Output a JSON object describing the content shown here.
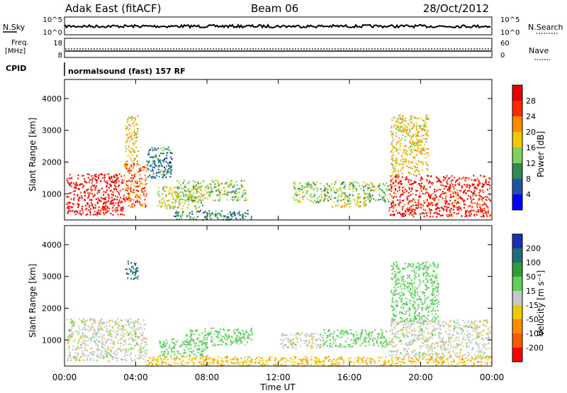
{
  "header": {
    "station": "Adak East (fitACF)",
    "beam": "Beam 06",
    "date": "28/Oct/2012"
  },
  "noise_panel": {
    "left_label": "N.Sky",
    "left_ticks": [
      "10^5",
      "10^0"
    ],
    "right_label": "N.Search",
    "right_ticks": [
      "10^5",
      "10^0"
    ],
    "right_line_style": "dotted"
  },
  "freq_panel": {
    "left_label_line1": "Freq.",
    "left_label_line2": "[MHz]",
    "left_ticks": [
      "18",
      "8"
    ],
    "right_label": "Nave",
    "right_ticks": [
      "60",
      "0"
    ],
    "right_line_style": "dotted",
    "cpid_label": "CPID",
    "cpid_text": "normalsound (fast) 157 RF"
  },
  "chart_data": [
    {
      "type": "heatmap",
      "title": "",
      "ylabel": "Slant Range [km]",
      "xlabel": "",
      "xlim": [
        "00:00",
        "24:00"
      ],
      "ylim": [
        180,
        4600
      ],
      "ytick_labels": [
        "1000",
        "2000",
        "3000",
        "4000"
      ],
      "colorbar": {
        "label": "Power [dB]",
        "ticks": [
          "4",
          "8",
          "12",
          "16",
          "20",
          "24",
          "28"
        ],
        "colors": [
          "#0000ff",
          "#1f50a8",
          "#2e8b57",
          "#7fd15a",
          "#f0c800",
          "#ff8c00",
          "#ff2800",
          "#e60000"
        ]
      },
      "echo_regions": [
        {
          "t_start": 0.1,
          "t_end": 3.3,
          "r_low": 350,
          "r_high": 1650,
          "power_dB": 29
        },
        {
          "t_start": 3.3,
          "t_end": 4.6,
          "r_low": 600,
          "r_high": 2000,
          "power_dB": 24
        },
        {
          "t_start": 3.4,
          "t_end": 4.1,
          "r_low": 2000,
          "r_high": 3500,
          "power_dB": 19
        },
        {
          "t_start": 5.2,
          "t_end": 7.8,
          "r_low": 550,
          "r_high": 1250,
          "power_dB": 16
        },
        {
          "t_start": 6.3,
          "t_end": 10.2,
          "r_low": 800,
          "r_high": 1450,
          "power_dB": 14
        },
        {
          "t_start": 6.0,
          "t_end": 10.5,
          "r_low": 200,
          "r_high": 500,
          "power_dB": 10
        },
        {
          "t_start": 12.8,
          "t_end": 18.2,
          "r_low": 750,
          "r_high": 1400,
          "power_dB": 14
        },
        {
          "t_start": 14.8,
          "t_end": 17.0,
          "r_low": 600,
          "r_high": 750,
          "power_dB": 20
        },
        {
          "t_start": 18.2,
          "t_end": 23.9,
          "r_low": 300,
          "r_high": 1600,
          "power_dB": 28
        },
        {
          "t_start": 18.3,
          "t_end": 20.4,
          "r_low": 1600,
          "r_high": 3500,
          "power_dB": 18
        },
        {
          "t_start": 4.6,
          "t_end": 6.0,
          "r_low": 1500,
          "r_high": 2500,
          "power_dB": 8
        }
      ]
    },
    {
      "type": "heatmap",
      "title": "",
      "ylabel": "Slant Range [km]",
      "xlabel": "Time UT",
      "xlim": [
        "00:00",
        "24:00"
      ],
      "ylim": [
        180,
        4600
      ],
      "xtick_labels": [
        "00:00",
        "04:00",
        "08:00",
        "12:00",
        "16:00",
        "20:00",
        "00:00"
      ],
      "ytick_labels": [
        "1000",
        "2000",
        "3000",
        "4000"
      ],
      "colorbar": {
        "label": "Velocity [m s⁻¹]",
        "ticks": [
          "200",
          "100",
          "50",
          "15",
          "-15",
          "-50",
          "-100",
          "-200"
        ],
        "colors": [
          "#1a2fb5",
          "#1e6e78",
          "#2f9b3a",
          "#5ad25a",
          "#c8c8c8",
          "#f0c800",
          "#ff8c00",
          "#ff5a00",
          "#ff0000"
        ]
      },
      "echo_regions": [
        {
          "t_start": 0.1,
          "t_end": 4.6,
          "r_low": 350,
          "r_high": 1700,
          "velocity": 0
        },
        {
          "t_start": 3.4,
          "t_end": 4.1,
          "r_low": 2900,
          "r_high": 3500,
          "velocity": 180
        },
        {
          "t_start": 5.3,
          "t_end": 8.0,
          "r_low": 500,
          "r_high": 1050,
          "velocity": 30
        },
        {
          "t_start": 6.8,
          "t_end": 10.5,
          "r_low": 850,
          "r_high": 1400,
          "velocity": 30
        },
        {
          "t_start": 4.5,
          "t_end": 24.0,
          "r_low": 200,
          "r_high": 500,
          "velocity": -40
        },
        {
          "t_start": 12.0,
          "t_end": 14.5,
          "r_low": 750,
          "r_high": 1250,
          "velocity": 0
        },
        {
          "t_start": 14.5,
          "t_end": 18.2,
          "r_low": 800,
          "r_high": 1350,
          "velocity": 30
        },
        {
          "t_start": 18.2,
          "t_end": 23.9,
          "r_low": 450,
          "r_high": 1650,
          "velocity": 0
        },
        {
          "t_start": 18.3,
          "t_end": 21.0,
          "r_low": 1600,
          "r_high": 3500,
          "velocity": 30
        }
      ]
    }
  ]
}
